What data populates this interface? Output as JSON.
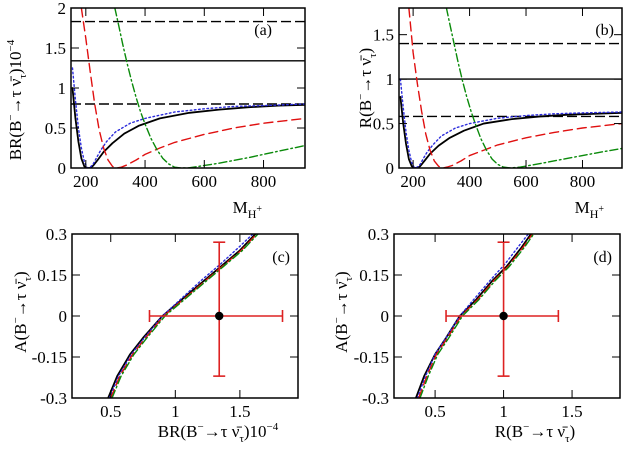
{
  "figure": {
    "layout": "2x2 panels"
  },
  "colors": {
    "sm": "#000000",
    "blue": "#2b2bdb",
    "red": "#e01010",
    "green": "#0a8a0a",
    "errorbar": "#dd2222",
    "frame": "#000000"
  },
  "chart_data": [
    {
      "id": "a",
      "type": "line",
      "panel_label": "(a)",
      "xlabel": "M_{H^+}",
      "ylabel": "BR(B⁻→τ ν̄τ)10⁻⁴",
      "xlim": [
        150,
        940
      ],
      "ylim": [
        0,
        2
      ],
      "x_ticks": [
        200,
        400,
        600,
        800
      ],
      "x_tick_labels": [
        "200",
        "400",
        "600",
        "800"
      ],
      "y_ticks": [
        0,
        0.5,
        1,
        1.5,
        2
      ],
      "y_tick_labels": [
        "0",
        "0.5",
        "1",
        "1.5",
        "2"
      ],
      "hlines": [
        {
          "name": "central",
          "y": 1.34,
          "style": "solid"
        },
        {
          "name": "upper-bound",
          "y": 1.83,
          "style": "dashed"
        },
        {
          "name": "lower-bound",
          "y": 0.8,
          "style": "dashed"
        }
      ],
      "series": [
        {
          "name": "black-solid",
          "color": "#000000",
          "dash": "solid",
          "x": [
            155,
            165,
            175,
            185,
            195,
            205,
            215,
            225,
            240,
            260,
            290,
            330,
            380,
            450,
            550,
            650,
            750,
            850,
            940
          ],
          "y": [
            1.0,
            0.62,
            0.33,
            0.12,
            0.02,
            0.0,
            0.0,
            0.03,
            0.1,
            0.2,
            0.31,
            0.43,
            0.53,
            0.62,
            0.69,
            0.73,
            0.76,
            0.78,
            0.79
          ]
        },
        {
          "name": "blue-dotted",
          "color": "#2b2bdb",
          "dash": "dotted",
          "x": [
            155,
            165,
            175,
            185,
            195,
            205,
            215,
            225,
            235,
            250,
            270,
            300,
            350,
            400,
            500,
            600,
            700,
            800,
            940
          ],
          "y": [
            1.25,
            0.85,
            0.5,
            0.25,
            0.08,
            0.0,
            0.01,
            0.05,
            0.12,
            0.22,
            0.33,
            0.45,
            0.56,
            0.62,
            0.7,
            0.74,
            0.77,
            0.78,
            0.8
          ]
        },
        {
          "name": "red-dashed",
          "color": "#e01010",
          "dash": "dashed",
          "x": [
            185,
            200,
            215,
            230,
            245,
            260,
            275,
            290,
            305,
            320,
            340,
            370,
            400,
            450,
            500,
            600,
            700,
            800,
            940
          ],
          "y": [
            2.0,
            1.62,
            1.2,
            0.8,
            0.48,
            0.25,
            0.1,
            0.02,
            0.0,
            0.01,
            0.04,
            0.1,
            0.17,
            0.25,
            0.32,
            0.42,
            0.5,
            0.56,
            0.62
          ]
        },
        {
          "name": "green-dashdot",
          "color": "#0a8a0a",
          "dash": "dashdot",
          "x": [
            298,
            310,
            325,
            340,
            355,
            370,
            385,
            400,
            420,
            440,
            460,
            480,
            500,
            520,
            545,
            580,
            650,
            750,
            850,
            940
          ],
          "y": [
            2.0,
            1.8,
            1.54,
            1.3,
            1.08,
            0.88,
            0.7,
            0.55,
            0.37,
            0.23,
            0.12,
            0.05,
            0.01,
            0.0,
            0.0,
            0.02,
            0.06,
            0.13,
            0.21,
            0.28
          ]
        }
      ]
    },
    {
      "id": "b",
      "type": "line",
      "panel_label": "(b)",
      "xlabel": "M_{H^+}",
      "ylabel": "R(B⁻→τ ν̄τ)",
      "xlim": [
        150,
        940
      ],
      "ylim": [
        0,
        1.8
      ],
      "x_ticks": [
        200,
        400,
        600,
        800
      ],
      "x_tick_labels": [
        "200",
        "400",
        "600",
        "800"
      ],
      "y_ticks": [
        0,
        0.5,
        1,
        1.5
      ],
      "y_tick_labels": [
        "0",
        "0.5",
        "1",
        "1.5"
      ],
      "hlines": [
        {
          "name": "central",
          "y": 1.0,
          "style": "solid"
        },
        {
          "name": "upper-bound",
          "y": 1.4,
          "style": "dashed"
        },
        {
          "name": "lower-bound",
          "y": 0.58,
          "style": "dashed"
        }
      ],
      "series": [
        {
          "name": "black-solid",
          "color": "#000000",
          "dash": "solid",
          "x": [
            155,
            165,
            175,
            185,
            195,
            205,
            215,
            225,
            240,
            260,
            290,
            330,
            380,
            450,
            550,
            650,
            750,
            850,
            940
          ],
          "y": [
            0.8,
            0.5,
            0.27,
            0.1,
            0.02,
            0.0,
            0.0,
            0.02,
            0.08,
            0.16,
            0.25,
            0.34,
            0.42,
            0.5,
            0.55,
            0.58,
            0.6,
            0.61,
            0.62
          ]
        },
        {
          "name": "blue-dotted",
          "color": "#2b2bdb",
          "dash": "dotted",
          "x": [
            155,
            165,
            175,
            185,
            195,
            205,
            215,
            225,
            235,
            250,
            270,
            300,
            350,
            400,
            500,
            600,
            700,
            800,
            940
          ],
          "y": [
            1.0,
            0.68,
            0.4,
            0.2,
            0.06,
            0.0,
            0.01,
            0.04,
            0.1,
            0.18,
            0.26,
            0.36,
            0.45,
            0.5,
            0.56,
            0.59,
            0.61,
            0.62,
            0.63
          ]
        },
        {
          "name": "red-dashed",
          "color": "#e01010",
          "dash": "dashed",
          "x": [
            185,
            200,
            215,
            230,
            245,
            260,
            275,
            290,
            305,
            320,
            340,
            370,
            400,
            450,
            500,
            600,
            700,
            800,
            940
          ],
          "y": [
            1.8,
            1.3,
            0.95,
            0.64,
            0.38,
            0.2,
            0.08,
            0.02,
            0.0,
            0.01,
            0.03,
            0.08,
            0.14,
            0.2,
            0.26,
            0.34,
            0.4,
            0.45,
            0.5
          ]
        },
        {
          "name": "green-dashdot",
          "color": "#0a8a0a",
          "dash": "dashdot",
          "x": [
            318,
            330,
            345,
            360,
            375,
            390,
            405,
            420,
            440,
            460,
            480,
            500,
            520,
            545,
            580,
            650,
            750,
            850,
            940
          ],
          "y": [
            1.8,
            1.62,
            1.4,
            1.18,
            0.98,
            0.8,
            0.64,
            0.5,
            0.33,
            0.2,
            0.1,
            0.04,
            0.01,
            0.0,
            0.01,
            0.05,
            0.11,
            0.17,
            0.22
          ]
        }
      ]
    },
    {
      "id": "c",
      "type": "line",
      "panel_label": "(c)",
      "xlabel": "BR(B⁻→τ ν̄τ)10⁻⁴",
      "ylabel": "A(B⁻→τ ν̄τ)",
      "xlim": [
        0.2,
        1.95
      ],
      "ylim": [
        -0.3,
        0.3
      ],
      "x_ticks": [
        0.5,
        1,
        1.5
      ],
      "x_tick_labels": [
        "0.5",
        "1",
        "1.5"
      ],
      "y_ticks": [
        -0.3,
        -0.15,
        0,
        0.15,
        0.3
      ],
      "y_tick_labels": [
        "-0.3",
        "-0.15",
        "0",
        "0.15",
        "0.3"
      ],
      "measurement": {
        "x": 1.34,
        "y": 0.0,
        "x_low": 0.8,
        "x_high": 1.83,
        "y_low": -0.22,
        "y_high": 0.27
      },
      "series": [
        {
          "name": "black-solid",
          "color": "#000000",
          "dash": "solid",
          "x": [
            0.48,
            0.55,
            0.65,
            0.75,
            0.9,
            1.05,
            1.2,
            1.35,
            1.5,
            1.62
          ],
          "y": [
            -0.3,
            -0.22,
            -0.14,
            -0.08,
            0.0,
            0.06,
            0.12,
            0.18,
            0.24,
            0.3
          ]
        },
        {
          "name": "blue-dotted",
          "color": "#2b2bdb",
          "dash": "dotted",
          "x": [
            0.49,
            0.56,
            0.66,
            0.76,
            0.9,
            1.05,
            1.2,
            1.35,
            1.5,
            1.6
          ],
          "y": [
            -0.3,
            -0.22,
            -0.14,
            -0.08,
            0.0,
            0.065,
            0.13,
            0.19,
            0.255,
            0.3
          ]
        },
        {
          "name": "red-dashed",
          "color": "#e01010",
          "dash": "dashed",
          "x": [
            0.5,
            0.57,
            0.67,
            0.77,
            0.91,
            1.06,
            1.21,
            1.36,
            1.51,
            1.63
          ],
          "y": [
            -0.3,
            -0.22,
            -0.14,
            -0.08,
            0.0,
            0.06,
            0.12,
            0.18,
            0.24,
            0.3
          ]
        },
        {
          "name": "green-dashdot",
          "color": "#0a8a0a",
          "dash": "dashdot",
          "x": [
            0.51,
            0.58,
            0.68,
            0.78,
            0.92,
            1.07,
            1.22,
            1.37,
            1.52,
            1.64
          ],
          "y": [
            -0.3,
            -0.22,
            -0.14,
            -0.08,
            0.0,
            0.06,
            0.12,
            0.18,
            0.24,
            0.3
          ]
        }
      ]
    },
    {
      "id": "d",
      "type": "line",
      "panel_label": "(d)",
      "xlabel": "R(B⁻→τ ν̄τ)",
      "ylabel": "A(B⁻→τ ν̄τ)",
      "xlim": [
        0.2,
        1.85
      ],
      "ylim": [
        -0.3,
        0.3
      ],
      "x_ticks": [
        0.5,
        1,
        1.5
      ],
      "x_tick_labels": [
        "0.5",
        "1",
        "1.5"
      ],
      "y_ticks": [
        -0.3,
        -0.15,
        0,
        0.15,
        0.3
      ],
      "y_tick_labels": [
        "-0.3",
        "-0.15",
        "0",
        "0.15",
        "0.3"
      ],
      "measurement": {
        "x": 1.0,
        "y": 0.0,
        "x_low": 0.58,
        "x_high": 1.4,
        "y_low": -0.22,
        "y_high": 0.27
      },
      "series": [
        {
          "name": "black-solid",
          "color": "#000000",
          "dash": "solid",
          "x": [
            0.36,
            0.42,
            0.5,
            0.58,
            0.68,
            0.8,
            0.92,
            1.02,
            1.13,
            1.2
          ],
          "y": [
            -0.3,
            -0.22,
            -0.14,
            -0.08,
            0.0,
            0.06,
            0.13,
            0.18,
            0.25,
            0.3
          ]
        },
        {
          "name": "blue-dotted",
          "color": "#2b2bdb",
          "dash": "dotted",
          "x": [
            0.37,
            0.43,
            0.5,
            0.58,
            0.68,
            0.79,
            0.91,
            1.01,
            1.11,
            1.18
          ],
          "y": [
            -0.3,
            -0.22,
            -0.14,
            -0.08,
            0.0,
            0.065,
            0.135,
            0.19,
            0.255,
            0.3
          ]
        },
        {
          "name": "red-dashed",
          "color": "#e01010",
          "dash": "dashed",
          "x": [
            0.38,
            0.44,
            0.51,
            0.59,
            0.69,
            0.81,
            0.93,
            1.03,
            1.14,
            1.21
          ],
          "y": [
            -0.3,
            -0.22,
            -0.14,
            -0.08,
            0.0,
            0.06,
            0.13,
            0.18,
            0.25,
            0.3
          ]
        },
        {
          "name": "green-dashdot",
          "color": "#0a8a0a",
          "dash": "dashdot",
          "x": [
            0.39,
            0.45,
            0.52,
            0.6,
            0.7,
            0.82,
            0.94,
            1.04,
            1.15,
            1.22
          ],
          "y": [
            -0.3,
            -0.22,
            -0.14,
            -0.08,
            0.0,
            0.06,
            0.13,
            0.18,
            0.25,
            0.3
          ]
        }
      ]
    }
  ]
}
